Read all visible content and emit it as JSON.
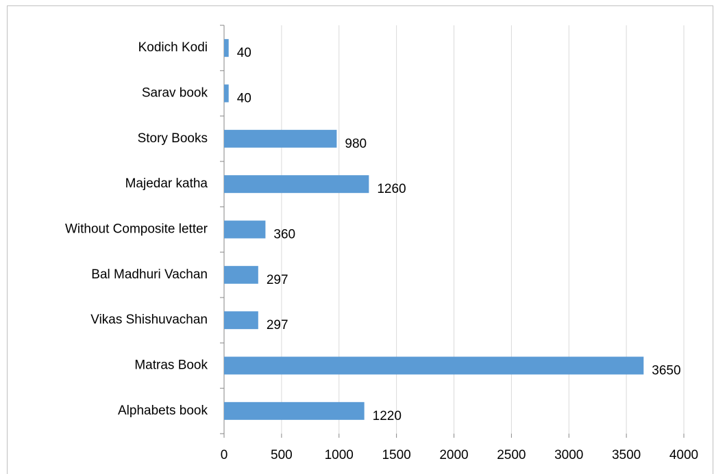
{
  "chart_data": {
    "type": "bar",
    "orientation": "horizontal",
    "categories": [
      "Alphabets book",
      "Matras Book",
      "Vikas Shishuvachan",
      "Bal Madhuri Vachan",
      "Without Composite letter",
      "Majedar katha",
      "Story Books",
      "Sarav book",
      "Kodich Kodi"
    ],
    "values": [
      1220,
      3650,
      297,
      297,
      360,
      1260,
      980,
      40,
      40
    ],
    "color": "#5b9bd5",
    "xlim": [
      0,
      4000
    ],
    "xticks": [
      0,
      500,
      1000,
      1500,
      2000,
      2500,
      3000,
      3500,
      4000
    ],
    "grid": true
  }
}
